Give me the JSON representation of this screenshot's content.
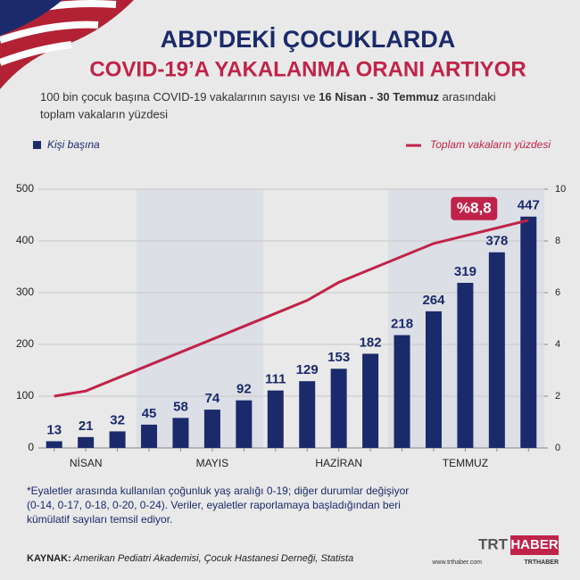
{
  "chart_data": {
    "type": "bar_line",
    "title": [
      "ABD'DEKİ ÇOCUKLARDA",
      "COVID-19’A YAKALANMA ORANI ARTIYOR"
    ],
    "subtitle": [
      "100 bin çocuk başına COVID-19 vakalarının sayısı ve ",
      "16 Nisan - 30 Temmuz",
      " arasındaki",
      "toplam vakaların yüzdesi"
    ],
    "categories": [
      null,
      "NİSAN",
      null,
      null,
      null,
      "MAYIS",
      null,
      null,
      null,
      "HAZİRAN",
      null,
      null,
      null,
      "TEMMUZ",
      null,
      null
    ],
    "series": [
      {
        "name": "Kişi başına",
        "color": "#1b2a6b",
        "values": [
          13,
          21,
          32,
          45,
          58,
          74,
          92,
          111,
          129,
          153,
          182,
          218,
          264,
          319,
          378,
          447
        ]
      },
      {
        "name": "Toplam vakaların yüzdesi",
        "color": "#c0234a",
        "axis": "y2",
        "values": [
          2.0,
          2.2,
          2.7,
          3.2,
          3.7,
          4.2,
          4.7,
          5.2,
          5.7,
          6.4,
          6.9,
          7.4,
          7.9,
          8.2,
          8.5,
          8.8
        ],
        "value_labels": [
          null,
          null,
          null,
          null,
          null,
          null,
          null,
          null,
          null,
          null,
          null,
          null,
          null,
          null,
          null,
          "%8,8"
        ]
      }
    ],
    "ylim": [
      0,
      500
    ],
    "yticks": [
      0,
      100,
      200,
      300,
      400,
      500
    ],
    "y2lim": [
      0,
      10
    ],
    "y2ticks": [
      0,
      2,
      4,
      6,
      8,
      10
    ],
    "footnote": [
      "*Eyaletler arasında kullanılan çoğunluk yaş aralığı 0-19; diğer durumlar değişiyor",
      "(0-14, 0-17, 0-18, 0-20, 0-24). Veriler, eyaletler raporlamaya başladığından beri",
      "kümülatif sayıları temsil ediyor."
    ],
    "source": [
      "KAYNAK:",
      " Amerikan Pediatri Akademisi, Çocuk Hastanesi Derneği, Statista"
    ],
    "brand": [
      "TRT",
      "HABER",
      "www.trthaber.com",
      "TRTHABER"
    ]
  }
}
